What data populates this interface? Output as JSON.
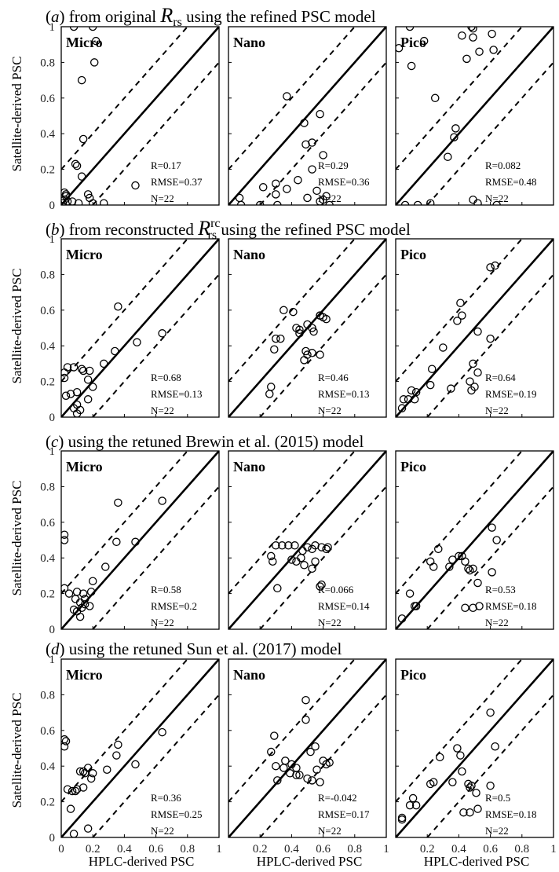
{
  "figure": {
    "x_axis_label": "HPLC-derived PSC",
    "y_axis_label": "Satellite-derived PSC",
    "tick_labels": [
      "0",
      "0.2",
      "0.4",
      "0.6",
      "0.8",
      "1"
    ]
  },
  "rows": [
    {
      "letter": "a",
      "title_pre": ") from original ",
      "title_var": "R",
      "title_sub": "rs",
      "title_sup": "",
      "title_post": " using the refined PSC model"
    },
    {
      "letter": "b",
      "title_pre": ") from reconstructed ",
      "title_var": "R",
      "title_sub": "rs",
      "title_sup": "rc",
      "title_post": " using the refined PSC model"
    },
    {
      "letter": "c",
      "title_pre": ") using the retuned Brewin et al. (2015) model",
      "title_var": "",
      "title_sub": "",
      "title_sup": "",
      "title_post": ""
    },
    {
      "letter": "d",
      "title_pre": ") using the retuned Sun et al. (2017) model",
      "title_var": "",
      "title_sub": "",
      "title_sup": "",
      "title_post": ""
    }
  ],
  "chart_data": [
    {
      "type": "scatter",
      "row": 0,
      "col": 0,
      "label": "Micro",
      "stats": [
        "R=0.17",
        "RMSE=0.37",
        "N=22"
      ],
      "xlim": [
        0,
        1
      ],
      "ylim": [
        0,
        1
      ],
      "reference_lines": {
        "one_to_one": true,
        "dashed_offset": 0.2
      },
      "points": [
        [
          0.08,
          1.0
        ],
        [
          0.2,
          1.0
        ],
        [
          0.22,
          0.92
        ],
        [
          0.21,
          0.8
        ],
        [
          0.13,
          0.7
        ],
        [
          0.14,
          0.37
        ],
        [
          0.09,
          0.23
        ],
        [
          0.1,
          0.22
        ],
        [
          0.13,
          0.16
        ],
        [
          0.02,
          0.07
        ],
        [
          0.03,
          0.06
        ],
        [
          0.02,
          0.03
        ],
        [
          0.01,
          0.01
        ],
        [
          0.07,
          0.02
        ],
        [
          0.11,
          0.01
        ],
        [
          0.17,
          0.06
        ],
        [
          0.18,
          0.04
        ],
        [
          0.2,
          0.01
        ],
        [
          0.27,
          0.01
        ],
        [
          0.47,
          0.11
        ],
        [
          0.03,
          0.05
        ],
        [
          0.04,
          0.02
        ]
      ]
    },
    {
      "type": "scatter",
      "row": 0,
      "col": 1,
      "label": "Nano",
      "stats": [
        "R=0.29",
        "RMSE=0.36",
        "N=22"
      ],
      "xlim": [
        0,
        1
      ],
      "ylim": [
        0,
        1
      ],
      "reference_lines": {
        "one_to_one": true,
        "dashed_offset": 0.2
      },
      "points": [
        [
          0.37,
          0.61
        ],
        [
          0.58,
          0.51
        ],
        [
          0.48,
          0.46
        ],
        [
          0.53,
          0.35
        ],
        [
          0.49,
          0.34
        ],
        [
          0.6,
          0.28
        ],
        [
          0.53,
          0.2
        ],
        [
          0.44,
          0.14
        ],
        [
          0.3,
          0.12
        ],
        [
          0.56,
          0.08
        ],
        [
          0.62,
          0.05
        ],
        [
          0.6,
          0.03
        ],
        [
          0.07,
          0.04
        ],
        [
          0.3,
          0.06
        ],
        [
          0.22,
          0.1
        ],
        [
          0.37,
          0.09
        ],
        [
          0.5,
          0.04
        ],
        [
          0.58,
          0.02
        ],
        [
          0.08,
          0.0
        ],
        [
          0.2,
          0.0
        ],
        [
          0.31,
          0.0
        ],
        [
          0.64,
          0.0
        ]
      ]
    },
    {
      "type": "scatter",
      "row": 0,
      "col": 2,
      "label": "Pico",
      "stats": [
        "R=0.082",
        "RMSE=0.48",
        "N=22"
      ],
      "xlim": [
        0,
        1
      ],
      "ylim": [
        0,
        1
      ],
      "reference_lines": {
        "one_to_one": true,
        "dashed_offset": 0.2
      },
      "points": [
        [
          0.09,
          1.0
        ],
        [
          0.48,
          1.0
        ],
        [
          0.49,
          0.99
        ],
        [
          0.18,
          0.92
        ],
        [
          0.42,
          0.95
        ],
        [
          0.61,
          0.96
        ],
        [
          0.02,
          0.88
        ],
        [
          0.49,
          0.94
        ],
        [
          0.62,
          0.87
        ],
        [
          0.53,
          0.86
        ],
        [
          0.1,
          0.78
        ],
        [
          0.45,
          0.82
        ],
        [
          0.25,
          0.6
        ],
        [
          0.38,
          0.43
        ],
        [
          0.37,
          0.38
        ],
        [
          0.33,
          0.27
        ],
        [
          0.06,
          0.0
        ],
        [
          0.14,
          0.0
        ],
        [
          0.22,
          0.01
        ],
        [
          0.49,
          0.03
        ],
        [
          0.52,
          0.01
        ],
        [
          0.64,
          0.0
        ]
      ]
    },
    {
      "type": "scatter",
      "row": 1,
      "col": 0,
      "label": "Micro",
      "stats": [
        "R=0.68",
        "RMSE=0.13",
        "N=22"
      ],
      "xlim": [
        0,
        1
      ],
      "ylim": [
        0,
        1
      ],
      "reference_lines": {
        "one_to_one": true,
        "dashed_offset": 0.2
      },
      "points": [
        [
          0.36,
          0.62
        ],
        [
          0.64,
          0.47
        ],
        [
          0.48,
          0.42
        ],
        [
          0.34,
          0.37
        ],
        [
          0.27,
          0.3
        ],
        [
          0.04,
          0.28
        ],
        [
          0.08,
          0.28
        ],
        [
          0.13,
          0.27
        ],
        [
          0.18,
          0.26
        ],
        [
          0.14,
          0.26
        ],
        [
          0.02,
          0.25
        ],
        [
          0.02,
          0.22
        ],
        [
          0.17,
          0.21
        ],
        [
          0.2,
          0.17
        ],
        [
          0.1,
          0.14
        ],
        [
          0.06,
          0.13
        ],
        [
          0.03,
          0.12
        ],
        [
          0.17,
          0.1
        ],
        [
          0.1,
          0.07
        ],
        [
          0.08,
          0.05
        ],
        [
          0.12,
          0.04
        ],
        [
          0.1,
          0.02
        ]
      ]
    },
    {
      "type": "scatter",
      "row": 1,
      "col": 1,
      "label": "Nano",
      "stats": [
        "R=0.46",
        "RMSE=0.13",
        "N=22"
      ],
      "xlim": [
        0,
        1
      ],
      "ylim": [
        0,
        1
      ],
      "reference_lines": {
        "one_to_one": true,
        "dashed_offset": 0.2
      },
      "points": [
        [
          0.35,
          0.6
        ],
        [
          0.41,
          0.59
        ],
        [
          0.58,
          0.57
        ],
        [
          0.6,
          0.56
        ],
        [
          0.62,
          0.55
        ],
        [
          0.5,
          0.52
        ],
        [
          0.53,
          0.5
        ],
        [
          0.43,
          0.5
        ],
        [
          0.45,
          0.47
        ],
        [
          0.54,
          0.48
        ],
        [
          0.3,
          0.44
        ],
        [
          0.33,
          0.44
        ],
        [
          0.29,
          0.38
        ],
        [
          0.49,
          0.37
        ],
        [
          0.5,
          0.35
        ],
        [
          0.53,
          0.36
        ],
        [
          0.58,
          0.35
        ],
        [
          0.48,
          0.32
        ],
        [
          0.27,
          0.17
        ],
        [
          0.26,
          0.13
        ],
        [
          0.45,
          0.49
        ],
        [
          0.58,
          0.57
        ]
      ]
    },
    {
      "type": "scatter",
      "row": 1,
      "col": 2,
      "label": "Pico",
      "stats": [
        "R=0.64",
        "RMSE=0.19",
        "N=22"
      ],
      "xlim": [
        0,
        1
      ],
      "ylim": [
        0,
        1
      ],
      "reference_lines": {
        "one_to_one": true,
        "dashed_offset": 0.2
      },
      "points": [
        [
          0.63,
          0.85
        ],
        [
          0.6,
          0.84
        ],
        [
          0.41,
          0.64
        ],
        [
          0.42,
          0.57
        ],
        [
          0.39,
          0.54
        ],
        [
          0.52,
          0.48
        ],
        [
          0.6,
          0.44
        ],
        [
          0.3,
          0.39
        ],
        [
          0.23,
          0.27
        ],
        [
          0.52,
          0.25
        ],
        [
          0.49,
          0.3
        ],
        [
          0.22,
          0.18
        ],
        [
          0.35,
          0.16
        ],
        [
          0.47,
          0.2
        ],
        [
          0.5,
          0.17
        ],
        [
          0.48,
          0.15
        ],
        [
          0.1,
          0.15
        ],
        [
          0.13,
          0.14
        ],
        [
          0.08,
          0.1
        ],
        [
          0.12,
          0.1
        ],
        [
          0.04,
          0.05
        ],
        [
          0.05,
          0.1
        ]
      ]
    },
    {
      "type": "scatter",
      "row": 2,
      "col": 0,
      "label": "Micro",
      "stats": [
        "R=0.58",
        "RMSE=0.2",
        "N=22"
      ],
      "xlim": [
        0,
        1
      ],
      "ylim": [
        0,
        1
      ],
      "reference_lines": {
        "one_to_one": true,
        "dashed_offset": 0.2
      },
      "points": [
        [
          0.64,
          0.72
        ],
        [
          0.36,
          0.71
        ],
        [
          0.02,
          0.53
        ],
        [
          0.02,
          0.5
        ],
        [
          0.47,
          0.49
        ],
        [
          0.35,
          0.49
        ],
        [
          0.28,
          0.35
        ],
        [
          0.2,
          0.27
        ],
        [
          0.02,
          0.23
        ],
        [
          0.05,
          0.2
        ],
        [
          0.1,
          0.21
        ],
        [
          0.19,
          0.21
        ],
        [
          0.14,
          0.2
        ],
        [
          0.15,
          0.17
        ],
        [
          0.09,
          0.17
        ],
        [
          0.12,
          0.15
        ],
        [
          0.15,
          0.14
        ],
        [
          0.18,
          0.13
        ],
        [
          0.13,
          0.12
        ],
        [
          0.08,
          0.11
        ],
        [
          0.1,
          0.1
        ],
        [
          0.12,
          0.07
        ]
      ]
    },
    {
      "type": "scatter",
      "row": 2,
      "col": 1,
      "label": "Nano",
      "stats": [
        "R=0.066",
        "RMSE=0.14",
        "N=22"
      ],
      "xlim": [
        0,
        1
      ],
      "ylim": [
        0,
        1
      ],
      "reference_lines": {
        "one_to_one": true,
        "dashed_offset": 0.2
      },
      "points": [
        [
          0.3,
          0.47
        ],
        [
          0.34,
          0.47
        ],
        [
          0.38,
          0.47
        ],
        [
          0.42,
          0.47
        ],
        [
          0.5,
          0.46
        ],
        [
          0.55,
          0.47
        ],
        [
          0.59,
          0.46
        ],
        [
          0.62,
          0.45
        ],
        [
          0.63,
          0.46
        ],
        [
          0.47,
          0.44
        ],
        [
          0.53,
          0.45
        ],
        [
          0.46,
          0.4
        ],
        [
          0.27,
          0.41
        ],
        [
          0.28,
          0.38
        ],
        [
          0.4,
          0.39
        ],
        [
          0.43,
          0.38
        ],
        [
          0.55,
          0.38
        ],
        [
          0.48,
          0.36
        ],
        [
          0.53,
          0.34
        ],
        [
          0.31,
          0.23
        ],
        [
          0.58,
          0.24
        ],
        [
          0.59,
          0.25
        ]
      ]
    },
    {
      "type": "scatter",
      "row": 2,
      "col": 2,
      "label": "Pico",
      "stats": [
        "R=0.53",
        "RMSE=0.18",
        "N=22"
      ],
      "xlim": [
        0,
        1
      ],
      "ylim": [
        0,
        1
      ],
      "reference_lines": {
        "one_to_one": true,
        "dashed_offset": 0.2
      },
      "points": [
        [
          0.61,
          0.57
        ],
        [
          0.64,
          0.5
        ],
        [
          0.27,
          0.45
        ],
        [
          0.4,
          0.41
        ],
        [
          0.42,
          0.41
        ],
        [
          0.44,
          0.38
        ],
        [
          0.22,
          0.38
        ],
        [
          0.24,
          0.35
        ],
        [
          0.34,
          0.35
        ],
        [
          0.36,
          0.39
        ],
        [
          0.46,
          0.34
        ],
        [
          0.49,
          0.34
        ],
        [
          0.47,
          0.33
        ],
        [
          0.61,
          0.32
        ],
        [
          0.52,
          0.26
        ],
        [
          0.53,
          0.13
        ],
        [
          0.49,
          0.12
        ],
        [
          0.44,
          0.12
        ],
        [
          0.09,
          0.2
        ],
        [
          0.12,
          0.13
        ],
        [
          0.13,
          0.13
        ],
        [
          0.04,
          0.06
        ]
      ]
    },
    {
      "type": "scatter",
      "row": 3,
      "col": 0,
      "label": "Micro",
      "stats": [
        "R=0.36",
        "RMSE=0.25",
        "N=22"
      ],
      "xlim": [
        0,
        1
      ],
      "ylim": [
        0,
        1
      ],
      "reference_lines": {
        "one_to_one": true,
        "dashed_offset": 0.2
      },
      "points": [
        [
          0.64,
          0.59
        ],
        [
          0.02,
          0.55
        ],
        [
          0.03,
          0.54
        ],
        [
          0.02,
          0.51
        ],
        [
          0.36,
          0.52
        ],
        [
          0.35,
          0.46
        ],
        [
          0.47,
          0.41
        ],
        [
          0.29,
          0.38
        ],
        [
          0.17,
          0.39
        ],
        [
          0.12,
          0.37
        ],
        [
          0.14,
          0.37
        ],
        [
          0.2,
          0.36
        ],
        [
          0.19,
          0.33
        ],
        [
          0.14,
          0.28
        ],
        [
          0.07,
          0.26
        ],
        [
          0.09,
          0.26
        ],
        [
          0.06,
          0.16
        ],
        [
          0.17,
          0.05
        ],
        [
          0.1,
          0.27
        ],
        [
          0.15,
          0.36
        ],
        [
          0.04,
          0.27
        ],
        [
          0.08,
          0.02
        ]
      ]
    },
    {
      "type": "scatter",
      "row": 3,
      "col": 1,
      "label": "Nano",
      "stats": [
        "R=-0.042",
        "RMSE=0.17",
        "N=22"
      ],
      "xlim": [
        0,
        1
      ],
      "ylim": [
        0,
        1
      ],
      "reference_lines": {
        "one_to_one": true,
        "dashed_offset": 0.2
      },
      "points": [
        [
          0.49,
          0.77
        ],
        [
          0.49,
          0.66
        ],
        [
          0.29,
          0.57
        ],
        [
          0.55,
          0.51
        ],
        [
          0.52,
          0.48
        ],
        [
          0.27,
          0.48
        ],
        [
          0.36,
          0.43
        ],
        [
          0.6,
          0.43
        ],
        [
          0.62,
          0.41
        ],
        [
          0.64,
          0.42
        ],
        [
          0.3,
          0.4
        ],
        [
          0.35,
          0.39
        ],
        [
          0.43,
          0.39
        ],
        [
          0.56,
          0.38
        ],
        [
          0.39,
          0.36
        ],
        [
          0.43,
          0.35
        ],
        [
          0.45,
          0.35
        ],
        [
          0.5,
          0.33
        ],
        [
          0.53,
          0.32
        ],
        [
          0.31,
          0.32
        ],
        [
          0.58,
          0.31
        ],
        [
          0.4,
          0.41
        ]
      ]
    },
    {
      "type": "scatter",
      "row": 3,
      "col": 2,
      "label": "Pico",
      "stats": [
        "R=0.5",
        "RMSE=0.18",
        "N=22"
      ],
      "xlim": [
        0,
        1
      ],
      "ylim": [
        0,
        1
      ],
      "reference_lines": {
        "one_to_one": true,
        "dashed_offset": 0.2
      },
      "points": [
        [
          0.6,
          0.7
        ],
        [
          0.63,
          0.51
        ],
        [
          0.39,
          0.5
        ],
        [
          0.41,
          0.46
        ],
        [
          0.28,
          0.45
        ],
        [
          0.42,
          0.37
        ],
        [
          0.24,
          0.31
        ],
        [
          0.22,
          0.3
        ],
        [
          0.36,
          0.31
        ],
        [
          0.46,
          0.3
        ],
        [
          0.48,
          0.29
        ],
        [
          0.6,
          0.29
        ],
        [
          0.51,
          0.25
        ],
        [
          0.47,
          0.28
        ],
        [
          0.52,
          0.16
        ],
        [
          0.47,
          0.14
        ],
        [
          0.43,
          0.14
        ],
        [
          0.11,
          0.22
        ],
        [
          0.13,
          0.18
        ],
        [
          0.09,
          0.18
        ],
        [
          0.04,
          0.11
        ],
        [
          0.04,
          0.1
        ]
      ]
    }
  ]
}
